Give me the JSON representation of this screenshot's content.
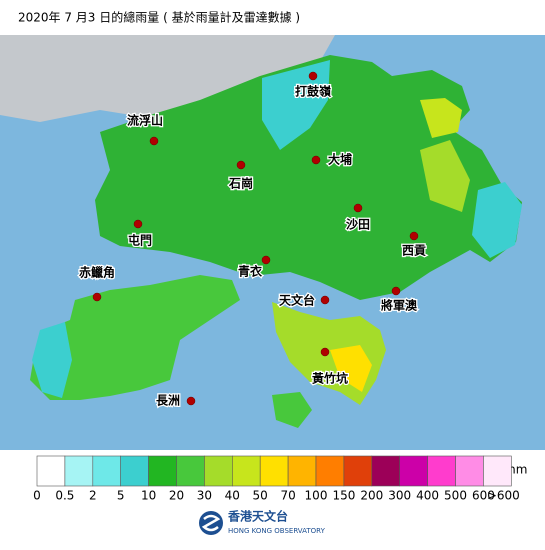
{
  "title": "2020年 7 月3 日的總雨量 ( 基於雨量計及雷達數據 )",
  "places": [
    "打鼓嶺",
    "流浮山",
    "大埔",
    "石崗",
    "沙田",
    "屯門",
    "西貢",
    "青衣",
    "赤鱲角",
    "天文台",
    "將軍澳",
    "黃竹坑",
    "長洲"
  ],
  "legend": {
    "unit": "mm",
    "labels": [
      "0",
      "0.5",
      "2",
      "5",
      "10",
      "20",
      "30",
      "40",
      "50",
      "70",
      "100",
      "150",
      "200",
      "300",
      "400",
      "500",
      "600",
      ">600"
    ],
    "colors": [
      "#ffffff",
      "#a6f4f4",
      "#6ee8e8",
      "#3ccfcf",
      "#22b622",
      "#48c83c",
      "#a5dc2a",
      "#c7e51c",
      "#ffe000",
      "#ffb400",
      "#ff7e00",
      "#e0400a",
      "#9c0058",
      "#cc00a8",
      "#ff3ccd",
      "#ff8ce6",
      "#ffe8fa"
    ]
  },
  "footer": {
    "name_zh": "香港天文台",
    "name_en": "HONG KONG OBSERVATORY"
  }
}
